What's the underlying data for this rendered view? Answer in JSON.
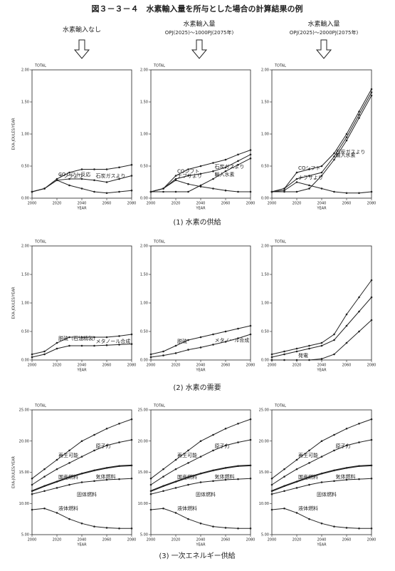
{
  "title": "図３－３－４　水素輸入量を所与とした場合の計算結果の例",
  "columns": [
    {
      "label": "水素輸入なし"
    },
    {
      "label": "水素輸入量",
      "sub": "OPJ(2025)～1000PJ(2075年)"
    },
    {
      "label": "水素輸入量",
      "sub": "OPJ(2025)～2000PJ(2075年)"
    }
  ],
  "row_captions": [
    "(1) 水素の供給",
    "(2) 水素の需要",
    "(3) 一次エネルギー供給"
  ],
  "chart_data": [
    {
      "type": "line",
      "title": "TOTAL",
      "y_label": "EXA-JOULES/YEAR",
      "x_label": "YEAR",
      "color": "#222",
      "x": [
        2000,
        2010,
        2020,
        2030,
        2040,
        2050,
        2060,
        2070,
        2080
      ],
      "xlim": [
        2000,
        2080
      ],
      "xticks": [
        2000,
        2020,
        2040,
        2060,
        2080
      ],
      "ylim": [
        0,
        2
      ],
      "yticks": [
        {
          "value": 0,
          "label": "0.00"
        },
        {
          "value": 0.5,
          "label": "0.50"
        },
        {
          "value": 1,
          "label": "1.00"
        },
        {
          "value": 1.5,
          "label": "1.50"
        },
        {
          "value": 2,
          "label": "2.00"
        }
      ],
      "series": [
        {
          "name": "COシフト反応",
          "values": [
            0.1,
            0.15,
            0.3,
            0.4,
            0.45,
            0.45,
            0.45,
            0.48,
            0.52
          ]
        },
        {
          "name": "石炭ガスより",
          "values": [
            0.1,
            0.15,
            0.28,
            0.3,
            0.3,
            0.28,
            0.25,
            0.3,
            0.35
          ]
        },
        {
          "name": "ナフサより",
          "values": [
            0.1,
            0.15,
            0.28,
            0.2,
            0.15,
            0.1,
            0.08,
            0.1,
            0.12
          ]
        }
      ]
    },
    {
      "type": "line",
      "title": "TOTAL",
      "x_label": "YEAR",
      "color": "#222",
      "x": [
        2000,
        2010,
        2020,
        2030,
        2040,
        2050,
        2060,
        2070,
        2080
      ],
      "xlim": [
        2000,
        2080
      ],
      "xticks": [
        2000,
        2020,
        2040,
        2060,
        2080
      ],
      "ylim": [
        0,
        2
      ],
      "yticks": [
        {
          "value": 0,
          "label": "0.00"
        },
        {
          "value": 0.5,
          "label": "0.50"
        },
        {
          "value": 1,
          "label": "1.00"
        },
        {
          "value": 1.5,
          "label": "1.50"
        },
        {
          "value": 2,
          "label": "2.00"
        }
      ],
      "series": [
        {
          "name": "COシフト",
          "values": [
            0.1,
            0.15,
            0.35,
            0.45,
            0.5,
            0.55,
            0.6,
            0.68,
            0.75
          ]
        },
        {
          "name": "石炭ガスより",
          "values": [
            0.1,
            0.15,
            0.3,
            0.35,
            0.38,
            0.42,
            0.48,
            0.58,
            0.68
          ]
        },
        {
          "name": "ナフサより",
          "values": [
            0.1,
            0.15,
            0.28,
            0.22,
            0.18,
            0.15,
            0.12,
            0.1,
            0.1
          ]
        },
        {
          "name": "輸入水素",
          "values": [
            0.1,
            0.1,
            0.1,
            0.1,
            0.2,
            0.3,
            0.42,
            0.52,
            0.62
          ]
        }
      ]
    },
    {
      "type": "line",
      "title": "TOTAL",
      "x_label": "YEAR",
      "color": "#222",
      "x": [
        2000,
        2010,
        2020,
        2030,
        2040,
        2050,
        2060,
        2070,
        2080
      ],
      "xlim": [
        2000,
        2080
      ],
      "xticks": [
        2000,
        2020,
        2040,
        2060,
        2080
      ],
      "ylim": [
        0,
        2
      ],
      "yticks": [
        {
          "value": 0,
          "label": "0.00"
        },
        {
          "value": 0.5,
          "label": "0.50"
        },
        {
          "value": 1,
          "label": "1.00"
        },
        {
          "value": 1.5,
          "label": "1.50"
        },
        {
          "value": 2,
          "label": "2.00"
        }
      ],
      "series": [
        {
          "name": "COシフト",
          "values": [
            0.1,
            0.15,
            0.4,
            0.45,
            0.5,
            0.7,
            1.0,
            1.35,
            1.7
          ]
        },
        {
          "name": "石炭ガスより",
          "values": [
            0.1,
            0.15,
            0.3,
            0.35,
            0.4,
            0.65,
            0.95,
            1.3,
            1.65
          ]
        },
        {
          "name": "ナフサより",
          "values": [
            0.1,
            0.12,
            0.25,
            0.2,
            0.15,
            0.1,
            0.08,
            0.08,
            0.1
          ]
        },
        {
          "name": "輸入水素",
          "values": [
            0.1,
            0.1,
            0.1,
            0.15,
            0.35,
            0.6,
            0.9,
            1.25,
            1.6
          ]
        }
      ]
    },
    {
      "type": "line",
      "title": "TOTAL",
      "y_label": "EXA-JOULES/YEAR",
      "x_label": "YEAR",
      "color": "#222",
      "x": [
        2000,
        2010,
        2020,
        2030,
        2040,
        2050,
        2060,
        2070,
        2080
      ],
      "xlim": [
        2000,
        2080
      ],
      "xticks": [
        2000,
        2020,
        2040,
        2060,
        2080
      ],
      "ylim": [
        0,
        2
      ],
      "yticks": [
        {
          "value": 0,
          "label": "0.00"
        },
        {
          "value": 0.5,
          "label": "0.50"
        },
        {
          "value": 1,
          "label": "1.00"
        },
        {
          "value": 1.5,
          "label": "1.50"
        },
        {
          "value": 2,
          "label": "2.00"
        }
      ],
      "series": [
        {
          "name": "脱硫（石油精製）",
          "values": [
            0.1,
            0.15,
            0.3,
            0.4,
            0.4,
            0.4,
            0.4,
            0.42,
            0.45
          ]
        },
        {
          "name": "メタノール合成",
          "values": [
            0.05,
            0.1,
            0.2,
            0.25,
            0.25,
            0.25,
            0.26,
            0.27,
            0.28
          ]
        }
      ]
    },
    {
      "type": "line",
      "title": "TOTAL",
      "x_label": "YEAR",
      "color": "#222",
      "x": [
        2000,
        2010,
        2020,
        2030,
        2040,
        2050,
        2060,
        2070,
        2080
      ],
      "xlim": [
        2000,
        2080
      ],
      "xticks": [
        2000,
        2020,
        2040,
        2060,
        2080
      ],
      "ylim": [
        0,
        2
      ],
      "yticks": [
        {
          "value": 0,
          "label": "0.00"
        },
        {
          "value": 0.5,
          "label": "0.50"
        },
        {
          "value": 1,
          "label": "1.00"
        },
        {
          "value": 1.5,
          "label": "1.50"
        },
        {
          "value": 2,
          "label": "2.00"
        }
      ],
      "series": [
        {
          "name": "脱硫",
          "values": [
            0.1,
            0.15,
            0.25,
            0.35,
            0.4,
            0.45,
            0.5,
            0.55,
            0.6
          ]
        },
        {
          "name": "メタノール合成",
          "values": [
            0.05,
            0.08,
            0.12,
            0.18,
            0.22,
            0.27,
            0.32,
            0.38,
            0.45
          ]
        }
      ]
    },
    {
      "type": "line",
      "title": "TOTAL",
      "x_label": "YEAR",
      "color": "#222",
      "x": [
        2000,
        2010,
        2020,
        2030,
        2040,
        2050,
        2060,
        2070,
        2080
      ],
      "xlim": [
        2000,
        2080
      ],
      "xticks": [
        2000,
        2020,
        2040,
        2060,
        2080
      ],
      "ylim": [
        0,
        2
      ],
      "yticks": [
        {
          "value": 0,
          "label": "0.00"
        },
        {
          "value": 0.5,
          "label": "0.50"
        },
        {
          "value": 1,
          "label": "1.00"
        },
        {
          "value": 1.5,
          "label": "1.50"
        },
        {
          "value": 2,
          "label": "2.00"
        }
      ],
      "series": [
        {
          "values": [
            0.1,
            0.15,
            0.2,
            0.25,
            0.3,
            0.45,
            0.8,
            1.1,
            1.4
          ]
        },
        {
          "values": [
            0.05,
            0.1,
            0.15,
            0.2,
            0.25,
            0.35,
            0.6,
            0.85,
            1.1
          ]
        },
        {
          "name": "発電",
          "values": [
            0,
            0,
            0,
            0,
            0.02,
            0.1,
            0.3,
            0.5,
            0.7
          ]
        }
      ]
    },
    {
      "type": "line",
      "title": "TOTAL",
      "y_label": "EXA-JOULES/YEAR",
      "x_label": "YEAR",
      "color": "#222",
      "x": [
        2000,
        2010,
        2020,
        2030,
        2040,
        2050,
        2060,
        2070,
        2080
      ],
      "xlim": [
        2000,
        2080
      ],
      "xticks": [
        2000,
        2020,
        2040,
        2060,
        2080
      ],
      "ylim": [
        5,
        25
      ],
      "yticks": [
        {
          "value": 5,
          "label": "5.00"
        },
        {
          "value": 10,
          "label": "10.00"
        },
        {
          "value": 15,
          "label": "15.00"
        },
        {
          "value": 20,
          "label": "20.00"
        },
        {
          "value": 25,
          "label": "25.00"
        }
      ],
      "annotations": [
        "固体燃料"
      ],
      "series": [
        {
          "name": "再生可能",
          "values": [
            14,
            15.5,
            17,
            18.5,
            20,
            21,
            22,
            22.8,
            23.5
          ]
        },
        {
          "name": "原子力",
          "values": [
            13,
            14.3,
            15.5,
            16.5,
            17.5,
            18.5,
            19.3,
            19.8,
            20.2
          ]
        },
        {
          "name": "国産燃料",
          "values": [
            12,
            12.8,
            13.5,
            14.2,
            14.8,
            15.3,
            15.7,
            16,
            16.1
          ]
        },
        {
          "name": "気体燃料",
          "values": [
            11.5,
            12,
            12.5,
            13,
            13.4,
            13.6,
            13.8,
            13.9,
            14
          ]
        },
        {
          "name": "液体燃料",
          "values": [
            9,
            9.2,
            8.5,
            7.5,
            6.8,
            6.3,
            6.1,
            6,
            6
          ]
        }
      ]
    },
    {
      "type": "line",
      "title": "TOTAL",
      "x_label": "YEAR",
      "color": "#222",
      "x": [
        2000,
        2010,
        2020,
        2030,
        2040,
        2050,
        2060,
        2070,
        2080
      ],
      "xlim": [
        2000,
        2080
      ],
      "xticks": [
        2000,
        2020,
        2040,
        2060,
        2080
      ],
      "ylim": [
        5,
        25
      ],
      "yticks": [
        {
          "value": 5,
          "label": "5.00"
        },
        {
          "value": 10,
          "label": "10.00"
        },
        {
          "value": 15,
          "label": "15.00"
        },
        {
          "value": 20,
          "label": "20.00"
        },
        {
          "value": 25,
          "label": "25.00"
        }
      ],
      "annotations": [
        "固体燃料"
      ],
      "series": [
        {
          "name": "再生可能",
          "values": [
            14,
            15.5,
            17,
            18.5,
            20,
            21,
            22,
            22.8,
            23.5
          ]
        },
        {
          "name": "原子力",
          "values": [
            13,
            14.3,
            15.5,
            16.5,
            17.5,
            18.5,
            19.3,
            19.8,
            20.2
          ]
        },
        {
          "name": "国産燃料",
          "values": [
            12,
            12.8,
            13.5,
            14.2,
            14.8,
            15.3,
            15.7,
            16,
            16.1
          ]
        },
        {
          "name": "気体燃料",
          "values": [
            11.5,
            12,
            12.5,
            13,
            13.4,
            13.6,
            13.8,
            13.9,
            14
          ]
        },
        {
          "name": "液体燃料",
          "values": [
            9,
            9.2,
            8.5,
            7.5,
            6.8,
            6.3,
            6.1,
            6,
            6
          ]
        }
      ]
    },
    {
      "type": "line",
      "title": "TOTAL",
      "x_label": "YEAR",
      "color": "#222",
      "x": [
        2000,
        2010,
        2020,
        2030,
        2040,
        2050,
        2060,
        2070,
        2080
      ],
      "xlim": [
        2000,
        2080
      ],
      "xticks": [
        2000,
        2020,
        2040,
        2060,
        2080
      ],
      "ylim": [
        5,
        25
      ],
      "yticks": [
        {
          "value": 5,
          "label": "5.00"
        },
        {
          "value": 10,
          "label": "10.00"
        },
        {
          "value": 15,
          "label": "15.00"
        },
        {
          "value": 20,
          "label": "20.00"
        },
        {
          "value": 25,
          "label": "25.00"
        }
      ],
      "annotations": [
        "固体燃料"
      ],
      "series": [
        {
          "name": "再生可能",
          "values": [
            14,
            15.5,
            17,
            18.5,
            20,
            21,
            22,
            22.8,
            23.5
          ]
        },
        {
          "name": "原子力",
          "values": [
            13,
            14.3,
            15.5,
            16.5,
            17.5,
            18.5,
            19.3,
            19.8,
            20.2
          ]
        },
        {
          "name": "国産燃料",
          "values": [
            12,
            12.8,
            13.5,
            14.2,
            14.8,
            15.3,
            15.7,
            16,
            16.1
          ]
        },
        {
          "name": "気体燃料",
          "values": [
            11.5,
            12,
            12.5,
            13,
            13.4,
            13.6,
            13.8,
            13.9,
            14
          ]
        },
        {
          "name": "液体燃料",
          "values": [
            9,
            9.2,
            8.5,
            7.5,
            6.8,
            6.3,
            6.1,
            6,
            6
          ]
        }
      ]
    }
  ]
}
